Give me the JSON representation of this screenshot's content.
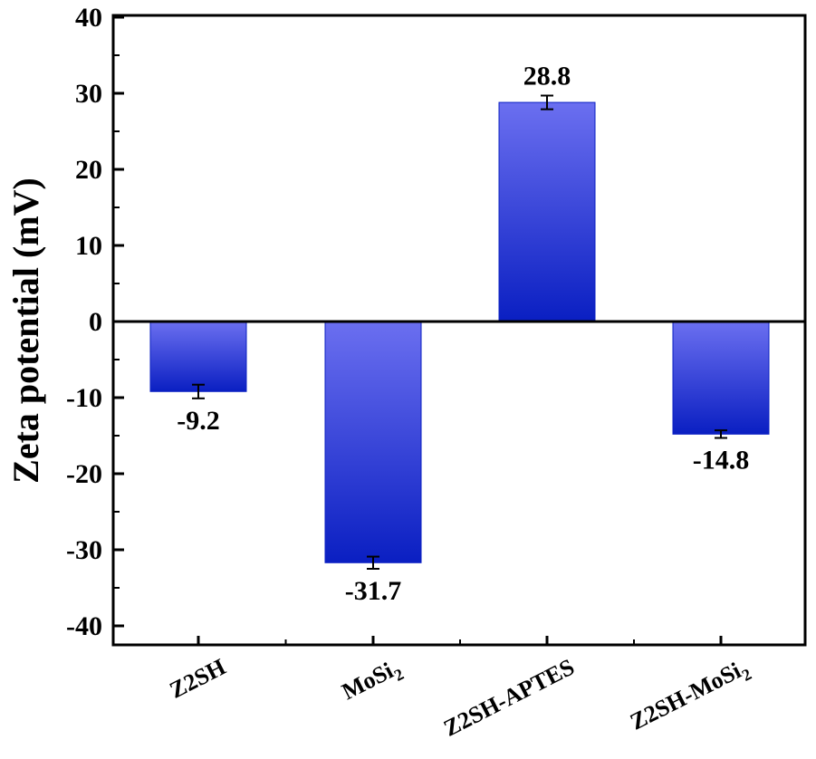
{
  "chart_data": {
    "type": "bar",
    "ylabel": "Zeta potential (mV)",
    "xlabel": "",
    "ylim": [
      -42,
      40
    ],
    "yticks": [
      40,
      30,
      20,
      10,
      0,
      -10,
      -20,
      -30,
      -40
    ],
    "grid": false,
    "categories": [
      {
        "base": "Z2SH",
        "sub": ""
      },
      {
        "base": "MoSi",
        "sub": "2"
      },
      {
        "base": "Z2SH-APTES",
        "sub": ""
      },
      {
        "base": "Z2SH-MoSi",
        "sub": "2"
      }
    ],
    "values": [
      -9.2,
      -31.7,
      28.8,
      -14.8
    ],
    "value_labels": [
      "-9.2",
      "-31.7",
      "28.8",
      "-14.8"
    ],
    "errors": [
      0.9,
      0.8,
      0.9,
      0.5
    ],
    "colors": {
      "bar_light": "#6b6ff0",
      "bar_dark": "#0a1fc2",
      "axis": "#000000"
    }
  }
}
